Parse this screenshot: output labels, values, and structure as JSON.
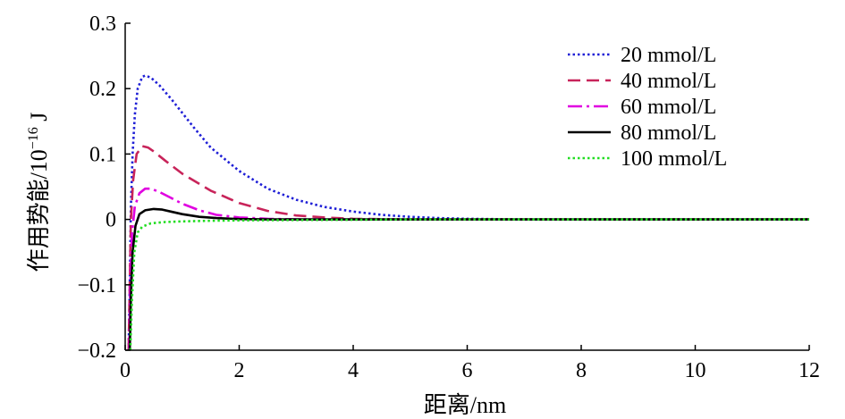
{
  "chart_data": {
    "type": "line",
    "xlabel": "距离/nm",
    "ylabel_main": "作用势能/10",
    "ylabel_exponent": "−16",
    "ylabel_unit": " J",
    "xlim": [
      0,
      12
    ],
    "ylim": [
      -0.2,
      0.3
    ],
    "x_ticks": [
      0,
      2,
      4,
      6,
      8,
      10,
      12
    ],
    "x_tick_labels": [
      "0",
      "2",
      "4",
      "6",
      "8",
      "10",
      "12"
    ],
    "y_ticks": [
      -0.2,
      -0.1,
      0,
      0.1,
      0.2,
      0.3
    ],
    "y_tick_labels": [
      "−0.2",
      "−0.1",
      "0",
      "0.1",
      "0.2",
      "0.3"
    ],
    "grid": false,
    "legend_position": "top-right",
    "series": [
      {
        "name": "20 mmol/L",
        "color": "#1f1fd6",
        "style": "dotted",
        "points": [
          [
            0.06,
            -0.2
          ],
          [
            0.08,
            -0.1
          ],
          [
            0.1,
            0.02
          ],
          [
            0.13,
            0.1
          ],
          [
            0.17,
            0.16
          ],
          [
            0.22,
            0.2
          ],
          [
            0.3,
            0.218
          ],
          [
            0.35,
            0.22
          ],
          [
            0.45,
            0.217
          ],
          [
            0.6,
            0.205
          ],
          [
            0.8,
            0.185
          ],
          [
            1.0,
            0.163
          ],
          [
            1.2,
            0.141
          ],
          [
            1.5,
            0.11
          ],
          [
            2.0,
            0.074
          ],
          [
            2.5,
            0.047
          ],
          [
            3.0,
            0.03
          ],
          [
            3.5,
            0.019
          ],
          [
            4.0,
            0.012
          ],
          [
            4.5,
            0.007
          ],
          [
            5.0,
            0.004
          ],
          [
            5.5,
            0.002
          ],
          [
            6.0,
            0.001
          ],
          [
            7.0,
            0
          ],
          [
            12.0,
            0
          ]
        ]
      },
      {
        "name": "40 mmol/L",
        "color": "#c8245a",
        "style": "dashed",
        "points": [
          [
            0.06,
            -0.2
          ],
          [
            0.08,
            -0.1
          ],
          [
            0.1,
            0.0
          ],
          [
            0.14,
            0.06
          ],
          [
            0.2,
            0.1
          ],
          [
            0.3,
            0.112
          ],
          [
            0.4,
            0.11
          ],
          [
            0.5,
            0.104
          ],
          [
            0.7,
            0.09
          ],
          [
            1.0,
            0.07
          ],
          [
            1.5,
            0.044
          ],
          [
            2.0,
            0.025
          ],
          [
            2.5,
            0.013
          ],
          [
            3.0,
            0.006
          ],
          [
            3.5,
            0.003
          ],
          [
            4.0,
            0.001
          ],
          [
            5.0,
            0
          ],
          [
            12.0,
            0
          ]
        ]
      },
      {
        "name": "60 mmol/L",
        "color": "#e000e0",
        "style": "dashdot",
        "points": [
          [
            0.07,
            -0.2
          ],
          [
            0.09,
            -0.1
          ],
          [
            0.12,
            -0.02
          ],
          [
            0.17,
            0.02
          ],
          [
            0.25,
            0.04
          ],
          [
            0.35,
            0.047
          ],
          [
            0.45,
            0.047
          ],
          [
            0.6,
            0.042
          ],
          [
            0.8,
            0.033
          ],
          [
            1.0,
            0.024
          ],
          [
            1.3,
            0.014
          ],
          [
            1.6,
            0.007
          ],
          [
            2.0,
            0.003
          ],
          [
            2.5,
            0.001
          ],
          [
            3.0,
            0
          ],
          [
            12.0,
            0
          ]
        ]
      },
      {
        "name": "80 mmol/L",
        "color": "#000000",
        "style": "solid",
        "points": [
          [
            0.08,
            -0.2
          ],
          [
            0.1,
            -0.12
          ],
          [
            0.13,
            -0.05
          ],
          [
            0.18,
            -0.01
          ],
          [
            0.25,
            0.008
          ],
          [
            0.35,
            0.014
          ],
          [
            0.5,
            0.016
          ],
          [
            0.65,
            0.015
          ],
          [
            0.8,
            0.012
          ],
          [
            1.0,
            0.008
          ],
          [
            1.3,
            0.004
          ],
          [
            1.6,
            0.002
          ],
          [
            2.0,
            0.0005
          ],
          [
            2.5,
            0
          ],
          [
            12.0,
            0
          ]
        ]
      },
      {
        "name": "100 mmol/L",
        "color": "#22dd22",
        "style": "dotted",
        "points": [
          [
            0.09,
            -0.2
          ],
          [
            0.12,
            -0.12
          ],
          [
            0.16,
            -0.05
          ],
          [
            0.22,
            -0.02
          ],
          [
            0.3,
            -0.011
          ],
          [
            0.45,
            -0.006
          ],
          [
            0.7,
            -0.004
          ],
          [
            1.0,
            -0.003
          ],
          [
            1.5,
            -0.002
          ],
          [
            2.0,
            -0.0015
          ],
          [
            3.0,
            -0.001
          ],
          [
            4.0,
            -0.0005
          ],
          [
            5.0,
            0
          ],
          [
            12.0,
            0
          ]
        ]
      }
    ]
  }
}
